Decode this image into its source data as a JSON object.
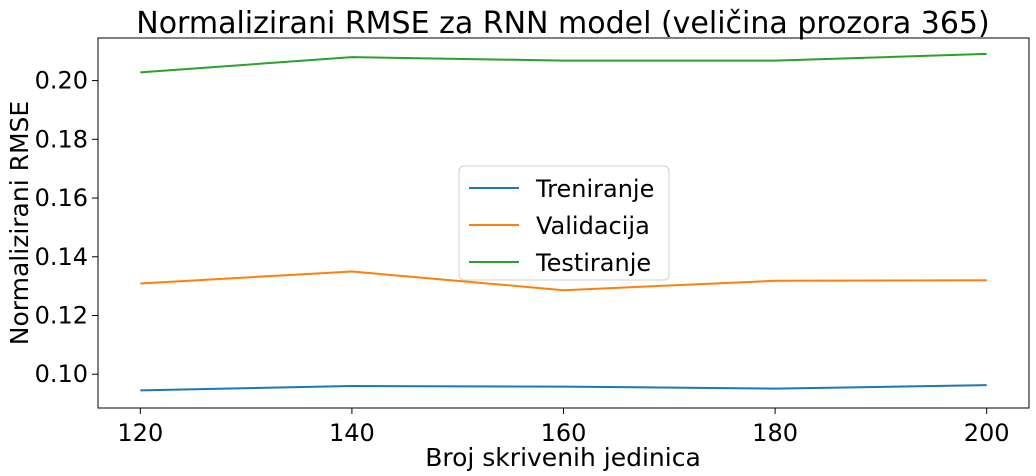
{
  "chart_data": {
    "type": "line",
    "title": "Normalizirani RMSE za RNN model (veličina prozora 365)",
    "xlabel": "Broj skrivenih jedinica",
    "ylabel": "Normalizirani RMSE",
    "x": [
      120,
      140,
      160,
      180,
      200
    ],
    "xticks": [
      "120",
      "140",
      "160",
      "180",
      "200"
    ],
    "yticks": [
      "0.10",
      "0.12",
      "0.14",
      "0.16",
      "0.18",
      "0.20"
    ],
    "xlim": [
      116,
      204
    ],
    "ylim": [
      0.0885,
      0.2145
    ],
    "grid": false,
    "legend_position": "center",
    "series": [
      {
        "name": "Treniranje",
        "color": "#1f77b4",
        "values": [
          0.0945,
          0.096,
          0.0958,
          0.0951,
          0.0963
        ]
      },
      {
        "name": "Validacija",
        "color": "#ff7f0e",
        "values": [
          0.1309,
          0.135,
          0.1286,
          0.1318,
          0.132
        ]
      },
      {
        "name": "Testiranje",
        "color": "#2ca02c",
        "values": [
          0.2028,
          0.208,
          0.2068,
          0.2068,
          0.2091
        ]
      }
    ]
  }
}
